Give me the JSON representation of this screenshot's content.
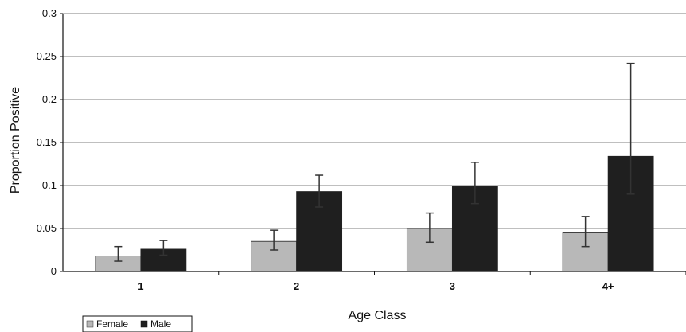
{
  "chart_data": {
    "type": "bar",
    "title": "",
    "xlabel": "Age Class",
    "ylabel": "Proportion Positive",
    "categories": [
      "1",
      "2",
      "3",
      "4+"
    ],
    "ylim": [
      0,
      0.3
    ],
    "yticks": [
      0,
      0.05,
      0.1,
      0.15,
      0.2,
      0.25,
      0.3
    ],
    "ytick_labels": [
      "0",
      "0.05",
      "0.1",
      "0.15",
      "0.2",
      "0.25",
      "0.3"
    ],
    "grid": true,
    "legend_position": "bottom-left",
    "series": [
      {
        "name": "Female",
        "color": "#b8b8b8",
        "values": [
          0.018,
          0.035,
          0.05,
          0.045
        ],
        "error_low": [
          0.012,
          0.025,
          0.034,
          0.029
        ],
        "error_high": [
          0.029,
          0.048,
          0.068,
          0.064
        ]
      },
      {
        "name": "Male",
        "color": "#1f1f1f",
        "values": [
          0.026,
          0.093,
          0.099,
          0.134
        ],
        "error_low": [
          0.019,
          0.075,
          0.079,
          0.09
        ],
        "error_high": [
          0.036,
          0.112,
          0.127,
          0.242
        ]
      }
    ]
  }
}
